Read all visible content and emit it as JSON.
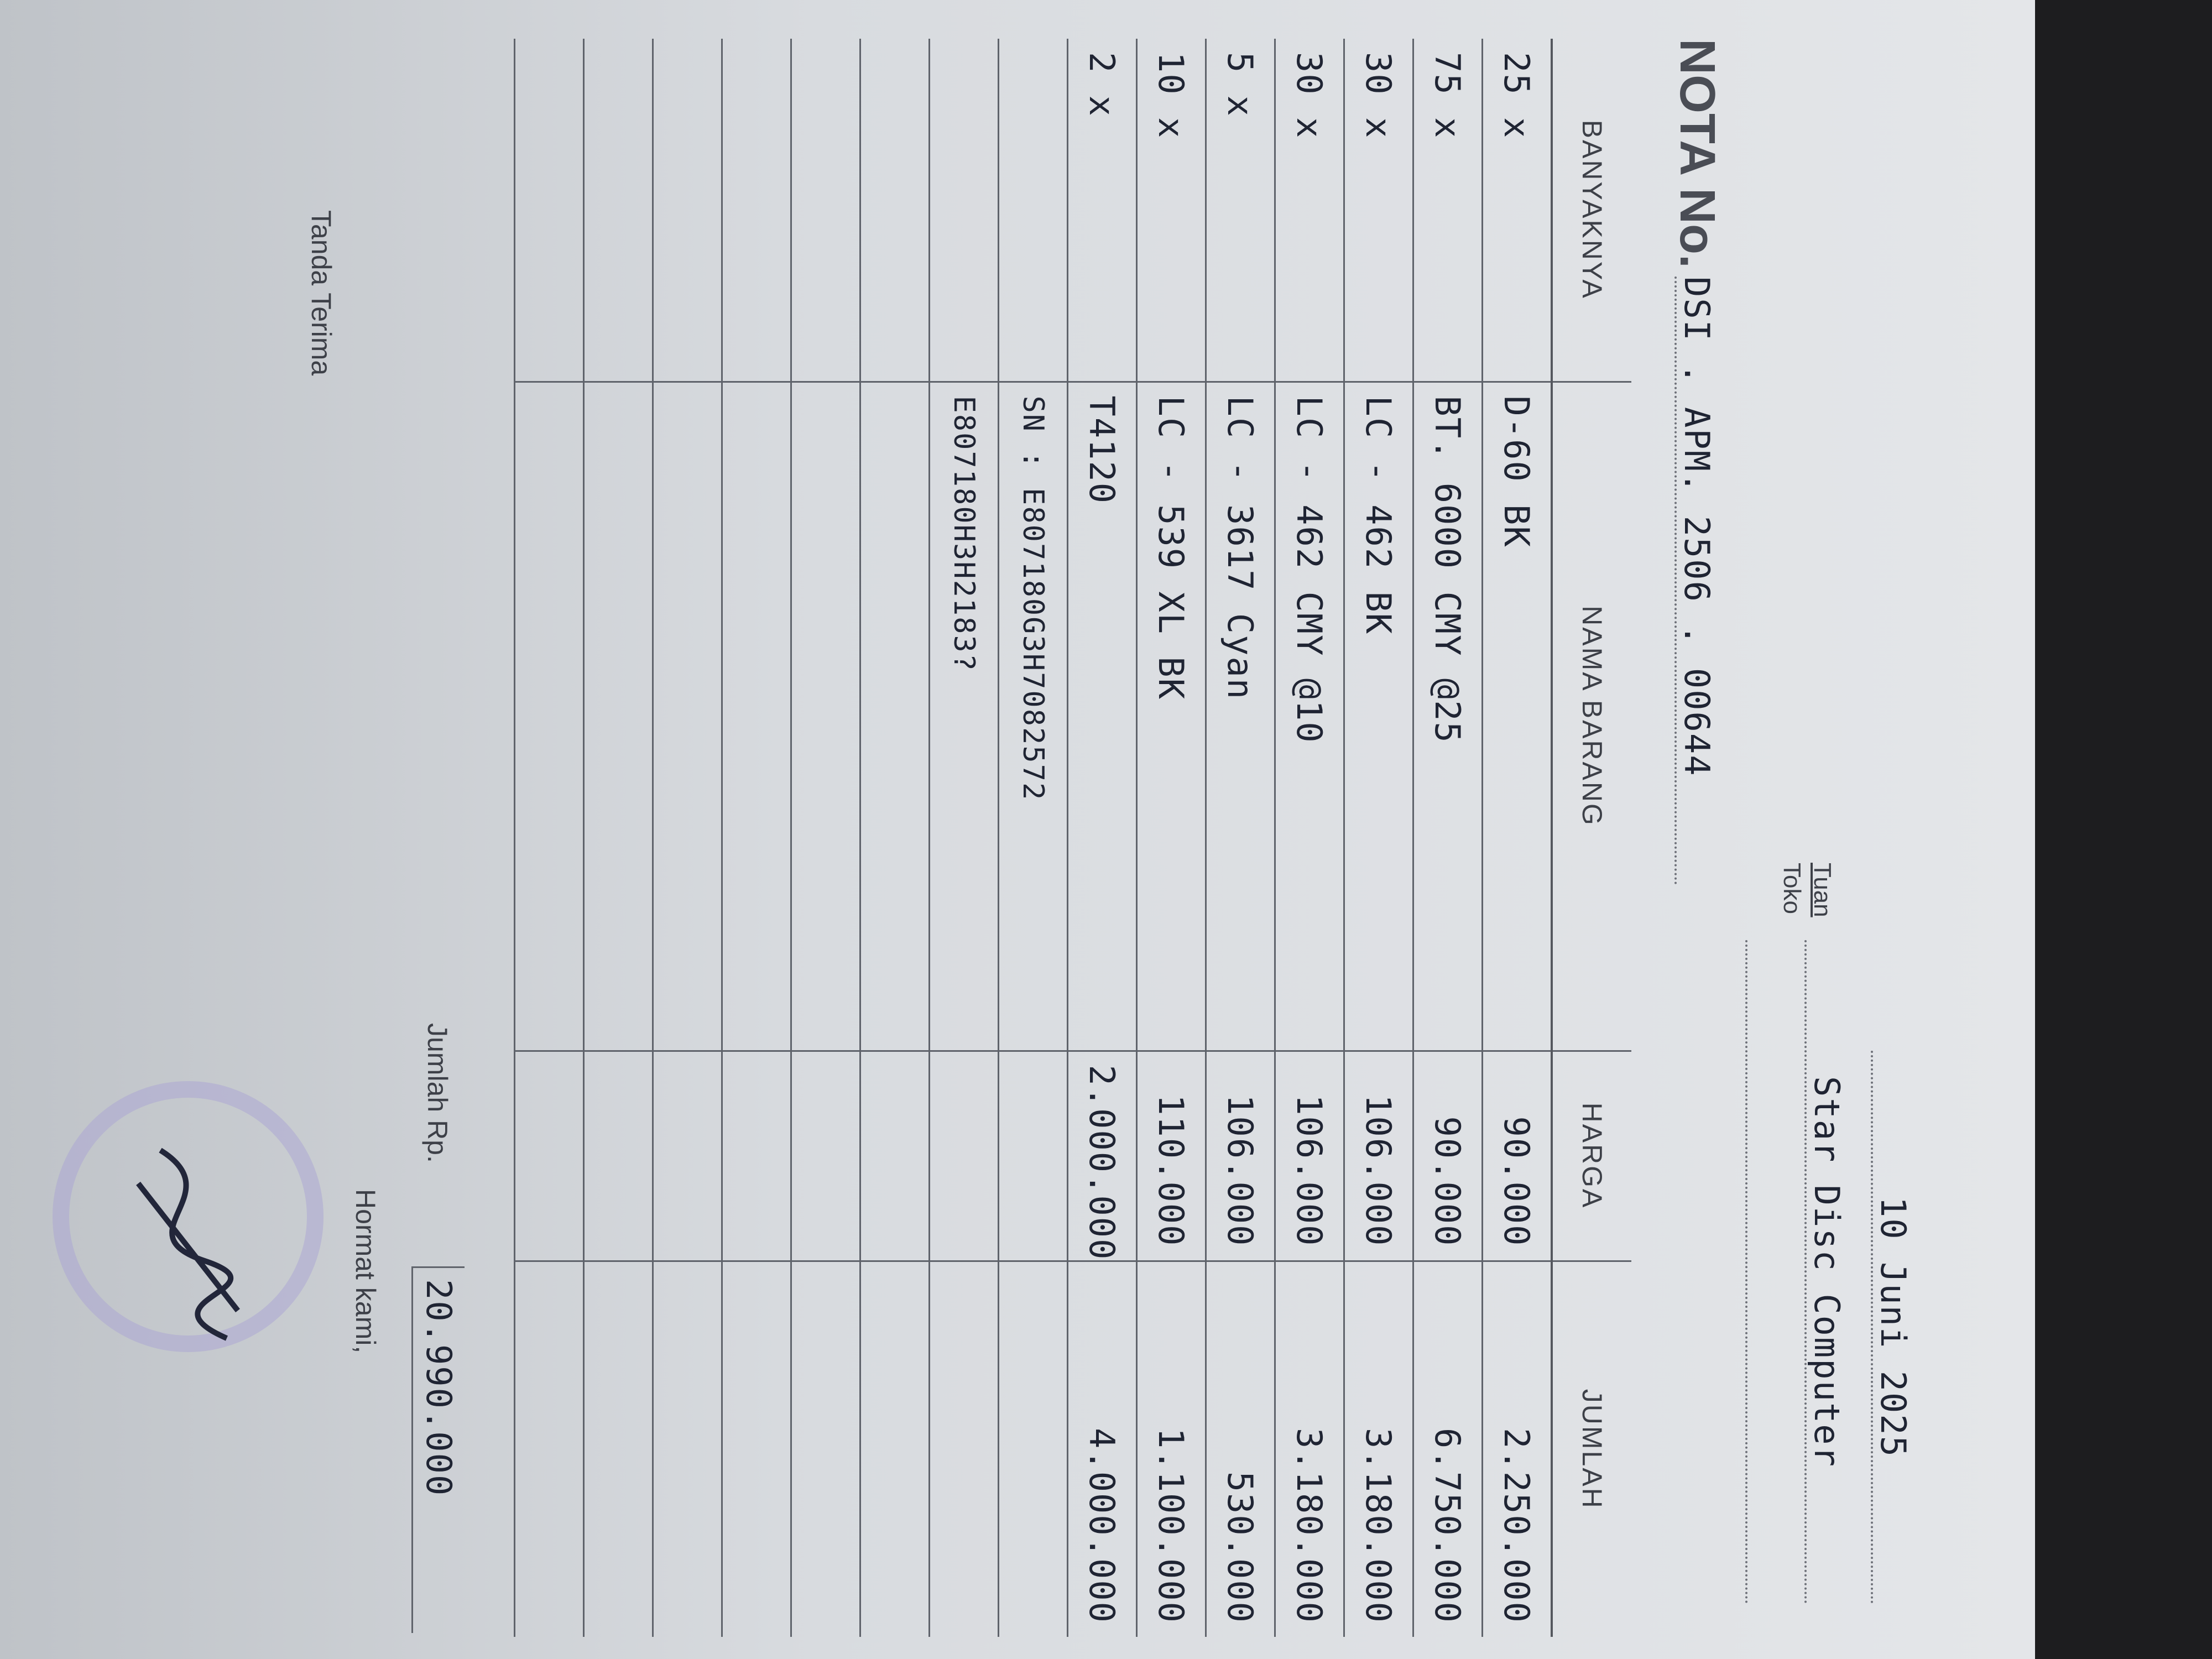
{
  "header": {
    "date": "10 Juni 2025",
    "tuan_label": "Tuan",
    "toko_label": "Toko",
    "customer": "Star Disc Computer",
    "nota_label": "NOTA No.",
    "nota_number": "DSI . APM. 2506 . 00644"
  },
  "table": {
    "columns": [
      "BANYAKNYA",
      "NAMA BARANG",
      "HARGA",
      "JUMLAH"
    ],
    "rows": [
      [
        "25 x",
        "D-60 BK",
        "90.000",
        "2.250.000"
      ],
      [
        "75 x",
        "BT. 6000 CMY @25",
        "90.000",
        "6.750.000"
      ],
      [
        "30 x",
        "LC - 462 BK",
        "106.000",
        "3.180.000"
      ],
      [
        "30 x",
        "LC - 462 CMY @10",
        "106.000",
        "3.180.000"
      ],
      [
        "5 x",
        "LC - 3617 Cyan",
        "106.000",
        "530.000"
      ],
      [
        "10 x",
        "LC - 539 XL BK",
        "110.000",
        "1.100.000"
      ],
      [
        "2 x",
        "T4120",
        "2.000.000",
        "4.000.000"
      ]
    ],
    "notes": [
      "SN : E807180G3H7082572",
      "E807180H3H2183?"
    ],
    "total_label": "Jumlah Rp.",
    "total": "20.990.000"
  },
  "footer": {
    "closing": "Hormat kami,",
    "receipt_label": "Tanda Terima"
  }
}
